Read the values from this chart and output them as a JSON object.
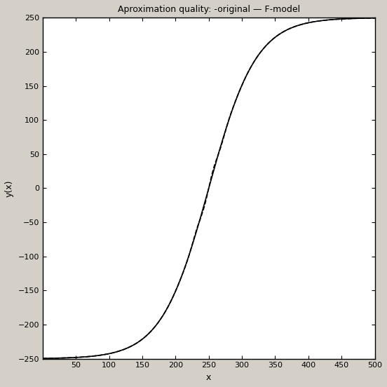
{
  "title": "Aproximation quality: -original — F-model",
  "xlabel": "x",
  "ylabel": "y(x)",
  "xlim": [
    0,
    500
  ],
  "ylim": [
    -250,
    250
  ],
  "xticks": [
    50,
    100,
    150,
    200,
    250,
    300,
    350,
    400,
    450,
    500
  ],
  "yticks": [
    -250,
    -200,
    -150,
    -100,
    -50,
    0,
    50,
    100,
    150,
    200,
    250
  ],
  "line_color": "#000000",
  "line_width": 1.2,
  "n_points": 2000,
  "x_start": 0,
  "x_end": 500,
  "background_color": "#d4d0c8",
  "plot_bg_color": "#ffffff",
  "figsize": [
    5.52,
    5.52
  ],
  "dpi": 100,
  "tanh_scale": 3.5,
  "perturbation_amp": 4.0,
  "perturbation_sigma": 18,
  "perturbation_freq": 4.5,
  "font_size_title": 9,
  "font_size_label": 9,
  "font_size_tick": 8
}
